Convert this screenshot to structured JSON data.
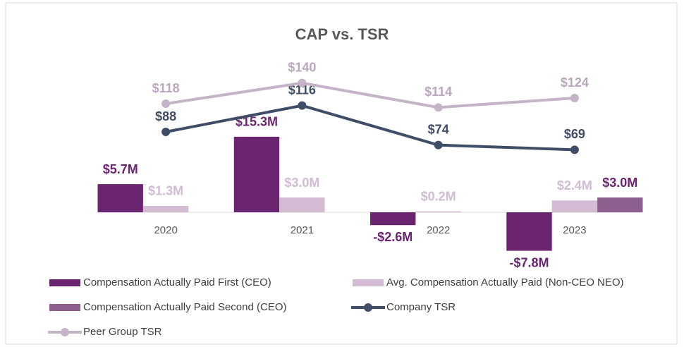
{
  "chart_data": {
    "type": "bar_line",
    "title": "CAP vs. TSR",
    "categories": [
      "2020",
      "2021",
      "2022",
      "2023"
    ],
    "series": [
      {
        "name": "Compensation Actually Paid First (CEO)",
        "color": "#6b2470",
        "type": "bar",
        "values": [
          5.7,
          15.3,
          -2.6,
          -7.8
        ],
        "value_labels": [
          "$5.7M",
          "$15.3M",
          "-$2.6M",
          "-$7.8M"
        ],
        "label_color": "#6b2470"
      },
      {
        "name": "Avg. Compensation Actually Paid (Non-CEO NEO)",
        "color": "#d4bcd4",
        "type": "bar",
        "values": [
          1.3,
          3.0,
          0.2,
          2.4
        ],
        "value_labels": [
          "$1.3M",
          "$3.0M",
          "$0.2M",
          "$2.4M"
        ],
        "label_color": "#d0bcd3"
      },
      {
        "name": "Compensation Actually Paid Second (CEO)",
        "color": "#8e5f8f",
        "type": "bar",
        "values": [
          null,
          null,
          null,
          3.0
        ],
        "value_labels": [
          null,
          null,
          null,
          "$3.0M"
        ],
        "label_color": "#6b2470"
      },
      {
        "name": "Company TSR",
        "color": "#3f4e66",
        "type": "line",
        "axis": "y2",
        "values": [
          88,
          116,
          74,
          69
        ],
        "value_labels": [
          "$88",
          "$116",
          "$74",
          "$69"
        ],
        "label_color": "#3f4e66"
      },
      {
        "name": "Peer Group TSR",
        "color": "#c5b3c8",
        "type": "line",
        "axis": "y2",
        "values": [
          118,
          140,
          114,
          124
        ],
        "value_labels": [
          "$118",
          "$140",
          "$114",
          "$124"
        ],
        "label_color": "#bba8be"
      }
    ],
    "ylim": [
      -10,
      30
    ],
    "y2lim": [
      -50,
      160
    ]
  }
}
